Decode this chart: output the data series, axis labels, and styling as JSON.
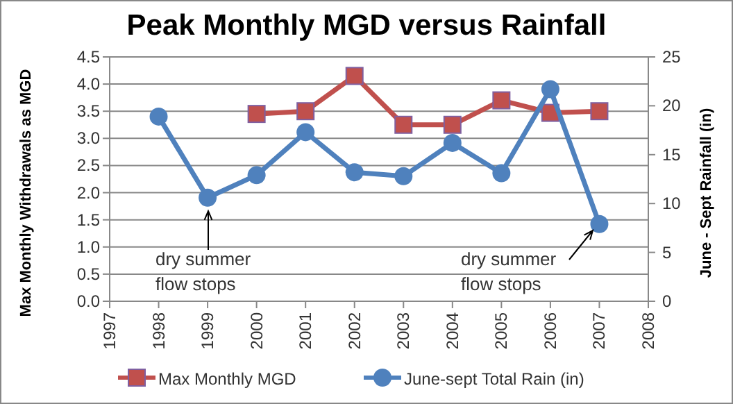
{
  "chart_data": {
    "type": "line",
    "title": "Peak Monthly MGD versus Rainfall",
    "ylabel": "Max Monthly Withdrawals as MGD",
    "y2label": "June - Sept Rainfall  (in)",
    "x": [
      1998,
      1999,
      2000,
      2001,
      2002,
      2003,
      2004,
      2005,
      2006,
      2007
    ],
    "series": [
      {
        "name": "Max Monthly MGD",
        "color": "#c0504d",
        "marker": "square",
        "values": [
          null,
          null,
          3.45,
          3.5,
          4.15,
          3.25,
          3.25,
          3.7,
          3.47,
          3.5
        ]
      },
      {
        "name": "June-sept Total  Rain (in)",
        "color": "#4f81bd",
        "marker": "circle",
        "axis": "y2",
        "values": [
          18.9,
          10.6,
          12.9,
          17.3,
          13.2,
          12.8,
          16.2,
          13.1,
          21.7,
          7.9
        ]
      }
    ],
    "xlim": [
      1997,
      2008
    ],
    "xticks": [
      1997,
      1998,
      1999,
      2000,
      2001,
      2002,
      2003,
      2004,
      2005,
      2006,
      2007,
      2008
    ],
    "ylim": [
      0,
      4.5
    ],
    "yticks": [
      {
        "value": 0,
        "label": "0.0"
      },
      {
        "value": 0.5,
        "label": "0.5"
      },
      {
        "value": 1,
        "label": "1.0"
      },
      {
        "value": 1.5,
        "label": "1.5"
      },
      {
        "value": 2,
        "label": "2.0"
      },
      {
        "value": 2.5,
        "label": "2.5"
      },
      {
        "value": 3,
        "label": "3.0"
      },
      {
        "value": 3.5,
        "label": "3.5"
      },
      {
        "value": 4,
        "label": "4.0"
      },
      {
        "value": 4.5,
        "label": "4.5"
      }
    ],
    "y2lim": [
      0,
      25
    ],
    "y2ticks": [
      0,
      5,
      10,
      15,
      20,
      25
    ],
    "annotations": [
      "dry summer\nflow stops",
      "dry summer\nflow stops"
    ],
    "grid": "y",
    "legend": "bottom",
    "line_style": "solid"
  }
}
